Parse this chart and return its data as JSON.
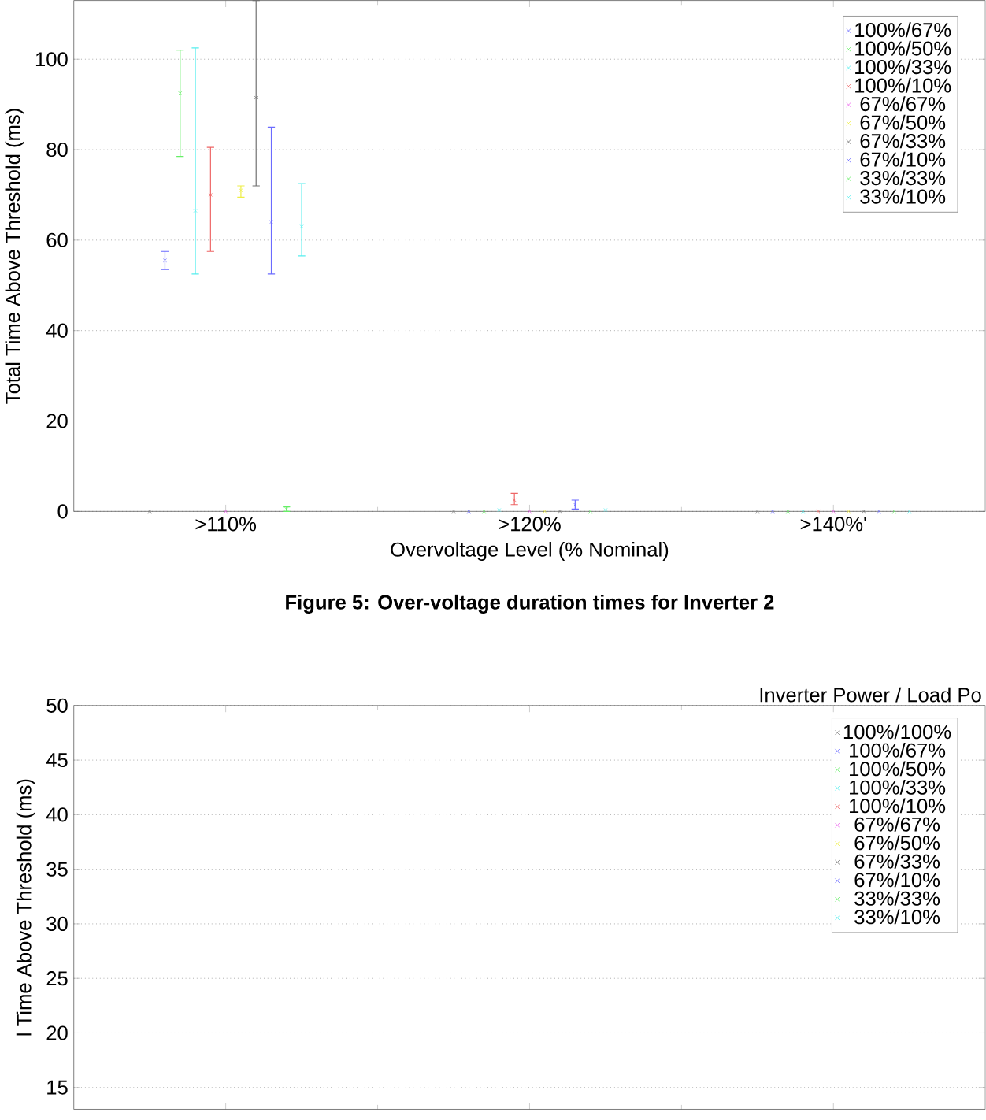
{
  "chart_data": [
    {
      "type": "scatter",
      "xlabel": "Overvoltage Level (% Nominal)",
      "ylabel": "Total Time Above Threshold (ms)",
      "categories": [
        ">110%",
        ">120%",
        ">140%'"
      ],
      "ylim": [
        0,
        113
      ],
      "yticks": [
        0,
        20,
        40,
        60,
        80,
        100
      ],
      "grid": "y",
      "legend": "top right",
      "marker": "cross",
      "annotations": [
        "Figure 5: Over-voltage duration times for Inverter 2"
      ],
      "series": [
        {
          "color": "#808080",
          "values": [
            0,
            0,
            0
          ]
        },
        {
          "name": "100%/67%",
          "color": "#6b6bff",
          "values": [
            55.5,
            0,
            0
          ],
          "errors": [
            [
              53.5,
              57.5
            ],
            null,
            null
          ]
        },
        {
          "name": "100%/50%",
          "color": "#66ee66",
          "values": [
            92.5,
            0,
            0
          ],
          "errors": [
            [
              78.5,
              102
            ],
            null,
            null
          ]
        },
        {
          "name": "100%/33%",
          "color": "#55eeee",
          "values": [
            66.5,
            0.3,
            0
          ],
          "errors": [
            [
              52.5,
              102.5
            ],
            null,
            null
          ]
        },
        {
          "name": "100%/10%",
          "color": "#ee6666",
          "values": [
            70,
            2.5,
            0
          ],
          "errors": [
            [
              57.5,
              80.5
            ],
            [
              1.5,
              4
            ],
            null
          ]
        },
        {
          "name": "67%/67%",
          "color": "#ee66ee",
          "values": [
            0,
            0,
            0
          ]
        },
        {
          "name": "67%/50%",
          "color": "#eeee44",
          "values": [
            71,
            0,
            0
          ],
          "errors": [
            [
              69.5,
              72
            ],
            null,
            null
          ]
        },
        {
          "name": "67%/33%",
          "color": "#707070",
          "values": [
            91.5,
            0,
            0
          ],
          "errors": [
            [
              72,
              113
            ],
            null,
            null
          ]
        },
        {
          "name": "67%/10%",
          "color": "#6b6bff",
          "values": [
            64,
            1.5,
            0
          ],
          "errors": [
            [
              52.5,
              85
            ],
            [
              0.5,
              2.5
            ],
            null
          ]
        },
        {
          "name": "33%/33%",
          "color": "#66ee66",
          "values": [
            0.5,
            0,
            0
          ],
          "errors": [
            [
              0,
              1
            ],
            null,
            null
          ]
        },
        {
          "name": "33%/10%",
          "color": "#55eeee",
          "values": [
            63,
            0.3,
            0
          ],
          "errors": [
            [
              56.5,
              72.5
            ],
            null,
            null
          ]
        }
      ]
    },
    {
      "type": "scatter",
      "ylabel": "l Time Above Threshold (ms)",
      "legend_title": "Inverter Power / Load Po",
      "categories": [
        null,
        null,
        null
      ],
      "ylim": [
        13,
        50
      ],
      "yticks": [
        15,
        20,
        25,
        30,
        35,
        40,
        45,
        50
      ],
      "grid": "y",
      "legend": "top right",
      "marker": "cross",
      "tick_labels": "y",
      "series": [
        {
          "name": "100%/100%",
          "color": "#808080",
          "values": [
            null,
            null,
            null
          ]
        },
        {
          "name": "100%/67%",
          "color": "#6b6bff",
          "values": [
            null,
            null,
            null
          ]
        },
        {
          "name": "100%/50%",
          "color": "#66ee66",
          "values": [
            null,
            null,
            null
          ]
        },
        {
          "name": "100%/33%",
          "color": "#55eeee",
          "values": [
            null,
            null,
            null
          ]
        },
        {
          "name": "100%/10%",
          "color": "#ee6666",
          "values": [
            null,
            null,
            null
          ]
        },
        {
          "name": "67%/67%",
          "color": "#ee66ee",
          "values": [
            null,
            null,
            null
          ]
        },
        {
          "name": "67%/50%",
          "color": "#eeee44",
          "values": [
            null,
            null,
            null
          ]
        },
        {
          "name": "67%/33%",
          "color": "#707070",
          "values": [
            null,
            null,
            null
          ]
        },
        {
          "name": "67%/10%",
          "color": "#6b6bff",
          "values": [
            null,
            null,
            null
          ]
        },
        {
          "name": "33%/33%",
          "color": "#66ee66",
          "values": [
            null,
            null,
            null
          ]
        },
        {
          "name": "33%/10%",
          "color": "#55eeee",
          "values": [
            null,
            null,
            null
          ]
        }
      ]
    }
  ]
}
